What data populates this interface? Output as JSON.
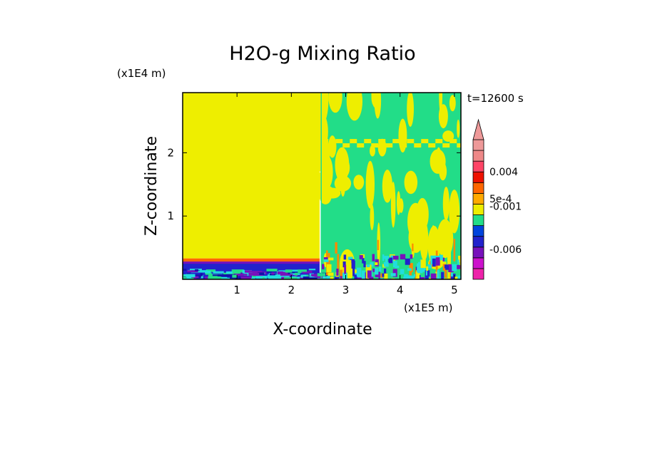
{
  "chart_data": {
    "type": "heatmap",
    "title": "H2O-g Mixing Ratio",
    "xlabel": "X-coordinate",
    "ylabel": "Z-coordinate",
    "x_scale_label": "(x1E5 m)",
    "y_scale_label": "(x1E4 m)",
    "time_label": "t=12600 s",
    "xlim": [
      0,
      5.12
    ],
    "ylim": [
      0,
      2.95
    ],
    "x_ticks": [
      "1",
      "2",
      "3",
      "4",
      "5"
    ],
    "x_tick_values": [
      1,
      2,
      3,
      4,
      5
    ],
    "y_ticks": [
      "1",
      "2"
    ],
    "y_tick_values": [
      1,
      2
    ],
    "colorbar": {
      "colors": [
        "#ee22aa",
        "#cc11cc",
        "#7711bb",
        "#2222cc",
        "#0044dd",
        "#22dd88",
        "#eeee00",
        "#ffaa00",
        "#ff6600",
        "#ee1100",
        "#ff4466",
        "#ee8888",
        "#ee9999"
      ],
      "labels": [
        "0.004",
        "5e-4",
        "-0.001",
        "-0.006"
      ],
      "label_levels": [
        10,
        7.5,
        6.8,
        2.8
      ],
      "extend_max": true
    },
    "regions": [
      {
        "name": "stable-left",
        "x": [
          0,
          2.52
        ],
        "z": [
          0.33,
          2.95
        ],
        "color": "#eeee00"
      },
      {
        "name": "boundary-layer-top",
        "x": [
          0,
          2.52
        ],
        "z": [
          0.28,
          0.33
        ],
        "color": "#ff6600"
      },
      {
        "name": "boundary-layer",
        "x": [
          0,
          2.52
        ],
        "z": [
          0,
          0.28
        ],
        "color": "#2222cc"
      },
      {
        "name": "turbulent-right",
        "x": [
          2.55,
          5.12
        ],
        "z": [
          0,
          2.95
        ],
        "color": "#22dd88"
      }
    ],
    "colors": {
      "yellow": "#eeee00",
      "green": "#22dd88",
      "cyan": "#22dddd",
      "blue": "#2222cc",
      "navy": "#1111aa",
      "purple": "#7711bb",
      "orange": "#ff8800"
    }
  }
}
